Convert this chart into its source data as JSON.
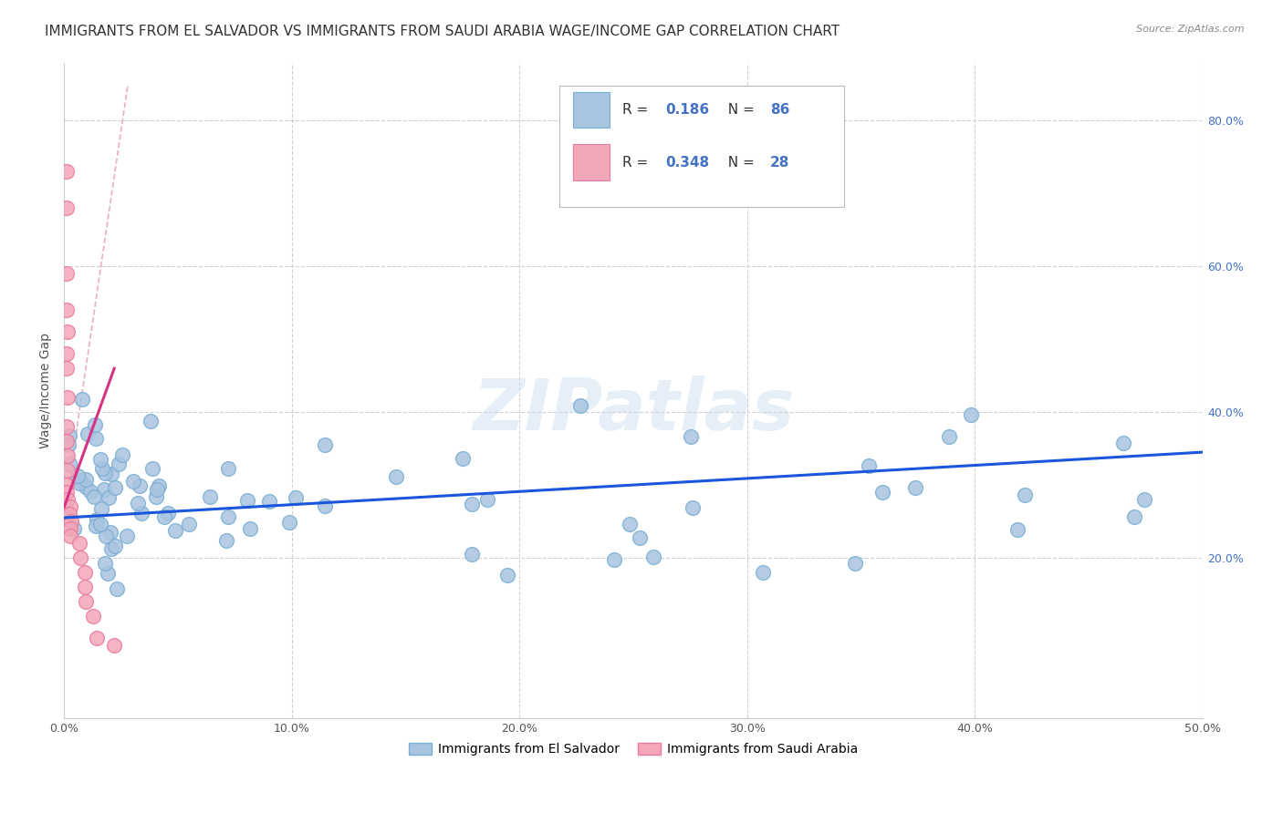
{
  "title": "IMMIGRANTS FROM EL SALVADOR VS IMMIGRANTS FROM SAUDI ARABIA WAGE/INCOME GAP CORRELATION CHART",
  "source": "Source: ZipAtlas.com",
  "ylabel": "Wage/Income Gap",
  "xlim": [
    0.0,
    0.5
  ],
  "ylim": [
    -0.02,
    0.88
  ],
  "xticklabels": [
    "0.0%",
    "10.0%",
    "20.0%",
    "30.0%",
    "40.0%",
    "50.0%"
  ],
  "xtick_vals": [
    0.0,
    0.1,
    0.2,
    0.3,
    0.4,
    0.5
  ],
  "ytick_vals": [
    0.2,
    0.4,
    0.6,
    0.8
  ],
  "yticklabels_right": [
    "20.0%",
    "40.0%",
    "60.0%",
    "80.0%"
  ],
  "el_salvador_color": "#a8c4e0",
  "saudi_arabia_color": "#f4a7b9",
  "el_salvador_edge": "#7aafd4",
  "saudi_arabia_edge": "#e87ca0",
  "trend_el_salvador_color": "#1a56db",
  "trend_saudi_arabia_color": "#d63384",
  "diag_line_color": "#e090a0",
  "R_el_salvador": "0.186",
  "N_el_salvador": "86",
  "R_saudi_arabia": "0.348",
  "N_saudi_arabia": "28",
  "legend_label_1": "Immigrants from El Salvador",
  "legend_label_2": "Immigrants from Saudi Arabia",
  "watermark": "ZIPatlas",
  "background_color": "#ffffff",
  "grid_color": "#cccccc",
  "title_fontsize": 11,
  "axis_label_fontsize": 10,
  "tick_fontsize": 9,
  "right_tick_color": "#4472c4"
}
